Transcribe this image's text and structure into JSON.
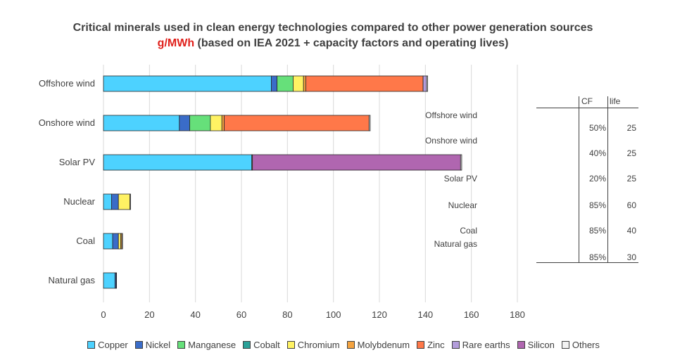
{
  "chart_data": {
    "type": "bar",
    "orientation": "horizontal",
    "stacked": true,
    "title": "Critical minerals used in clean energy technologies compared to other power generation sources",
    "subtitle_unit": "g/MWh",
    "subtitle_rest": " (based on IEA 2021 + capacity factors and operating lives)",
    "categories": [
      "Offshore wind",
      "Onshore wind",
      "Solar PV",
      "Nuclear",
      "Coal",
      "Natural gas"
    ],
    "xlim": [
      0,
      180
    ],
    "xticks": [
      "0",
      "20",
      "40",
      "60",
      "80",
      "100",
      "120",
      "140",
      "160",
      "180"
    ],
    "grid": true,
    "legend_position": "bottom",
    "series": [
      {
        "name": "Copper",
        "color": "#4dd2ff",
        "values": [
          73,
          33,
          64.5,
          3.5,
          4,
          5
        ]
      },
      {
        "name": "Nickel",
        "color": "#3a6cc8",
        "values": [
          2.5,
          4.5,
          0,
          3,
          2.5,
          0.5
        ]
      },
      {
        "name": "Manganese",
        "color": "#66e07a",
        "values": [
          7,
          9,
          0,
          0,
          0,
          0
        ]
      },
      {
        "name": "Cobalt",
        "color": "#2aa198",
        "values": [
          0,
          0,
          0,
          0,
          0,
          0
        ]
      },
      {
        "name": "Chromium",
        "color": "#fff263",
        "values": [
          4.5,
          5,
          0,
          5,
          1,
          0
        ]
      },
      {
        "name": "Molybdenum",
        "color": "#f4a340",
        "values": [
          1,
          1,
          0.3,
          0,
          0.5,
          0
        ]
      },
      {
        "name": "Zinc",
        "color": "#ff7849",
        "values": [
          51,
          63,
          0,
          0,
          0,
          0
        ]
      },
      {
        "name": "Rare earths",
        "color": "#b39ddb",
        "values": [
          1.5,
          0,
          0,
          0,
          0,
          0
        ]
      },
      {
        "name": "Silicon",
        "color": "#b066b0",
        "values": [
          0,
          0,
          90.5,
          0,
          0,
          0
        ]
      },
      {
        "name": "Others",
        "color": "#f2f2f2",
        "values": [
          0.5,
          0.5,
          0.5,
          0.3,
          0.3,
          0.2
        ]
      }
    ]
  },
  "cf_table": {
    "headers": {
      "cf": "CF",
      "life": "life"
    },
    "rows": [
      {
        "name": "Offshore wind",
        "cf": "50%",
        "life": "25"
      },
      {
        "name": "Onshore wind",
        "cf": "40%",
        "life": "25"
      },
      {
        "name": "Solar PV",
        "cf": "20%",
        "life": "25"
      },
      {
        "name": "Nuclear",
        "cf": "85%",
        "life": "60"
      },
      {
        "name": "Coal",
        "cf": "85%",
        "life": "40"
      },
      {
        "name": "Natural gas",
        "cf": "85%",
        "life": "30"
      }
    ]
  }
}
